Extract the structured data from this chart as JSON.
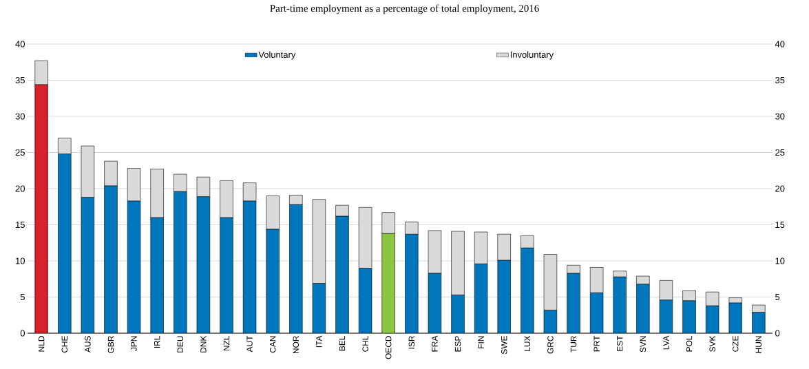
{
  "chart_data": {
    "type": "bar",
    "title": "Part-time employment as a percentage of total employment, 2016",
    "categories": [
      "NLD",
      "CHE",
      "AUS",
      "GBR",
      "JPN",
      "IRL",
      "DEU",
      "DNK",
      "NZL",
      "AUT",
      "CAN",
      "NOR",
      "ITA",
      "BEL",
      "CHL",
      "OECD",
      "ISR",
      "FRA",
      "ESP",
      "FIN",
      "SWE",
      "LUX",
      "GRC",
      "TUR",
      "PRT",
      "EST",
      "SVN",
      "LVA",
      "POL",
      "SVK",
      "CZE",
      "HUN"
    ],
    "stacked": true,
    "series": [
      {
        "name": "Voluntary",
        "color": "#0077bd",
        "colors": [
          "#d7222b",
          "#0077bd",
          "#0077bd",
          "#0077bd",
          "#0077bd",
          "#0077bd",
          "#0077bd",
          "#0077bd",
          "#0077bd",
          "#0077bd",
          "#0077bd",
          "#0077bd",
          "#0077bd",
          "#0077bd",
          "#0077bd",
          "#8cc641",
          "#0077bd",
          "#0077bd",
          "#0077bd",
          "#0077bd",
          "#0077bd",
          "#0077bd",
          "#0077bd",
          "#0077bd",
          "#0077bd",
          "#0077bd",
          "#0077bd",
          "#0077bd",
          "#0077bd",
          "#0077bd",
          "#0077bd",
          "#0077bd"
        ],
        "values": [
          34.4,
          24.8,
          18.8,
          20.4,
          18.3,
          16.0,
          19.6,
          18.9,
          16.0,
          18.3,
          14.4,
          17.8,
          6.9,
          16.2,
          9.0,
          13.8,
          13.7,
          8.3,
          5.3,
          9.6,
          10.1,
          11.8,
          3.2,
          8.3,
          5.6,
          7.8,
          6.8,
          4.6,
          4.5,
          3.8,
          4.2,
          2.9
        ]
      },
      {
        "name": "Involuntary",
        "color": "#dadada",
        "values": [
          3.3,
          2.2,
          7.1,
          3.4,
          4.5,
          6.7,
          2.4,
          2.7,
          5.1,
          2.5,
          4.6,
          1.3,
          11.6,
          1.5,
          8.4,
          2.9,
          1.7,
          5.9,
          8.8,
          4.4,
          3.6,
          1.7,
          7.7,
          1.1,
          3.5,
          0.8,
          1.1,
          2.7,
          1.4,
          1.9,
          0.7,
          1.0
        ]
      }
    ],
    "ylim": [
      0,
      40
    ],
    "yticks": [
      0,
      5,
      10,
      15,
      20,
      25,
      30,
      35,
      40
    ],
    "y2lim": [
      0,
      40
    ],
    "y2ticks": [
      0,
      5,
      10,
      15,
      20,
      25,
      30,
      35,
      40
    ],
    "grid": "y",
    "legend": "top"
  }
}
